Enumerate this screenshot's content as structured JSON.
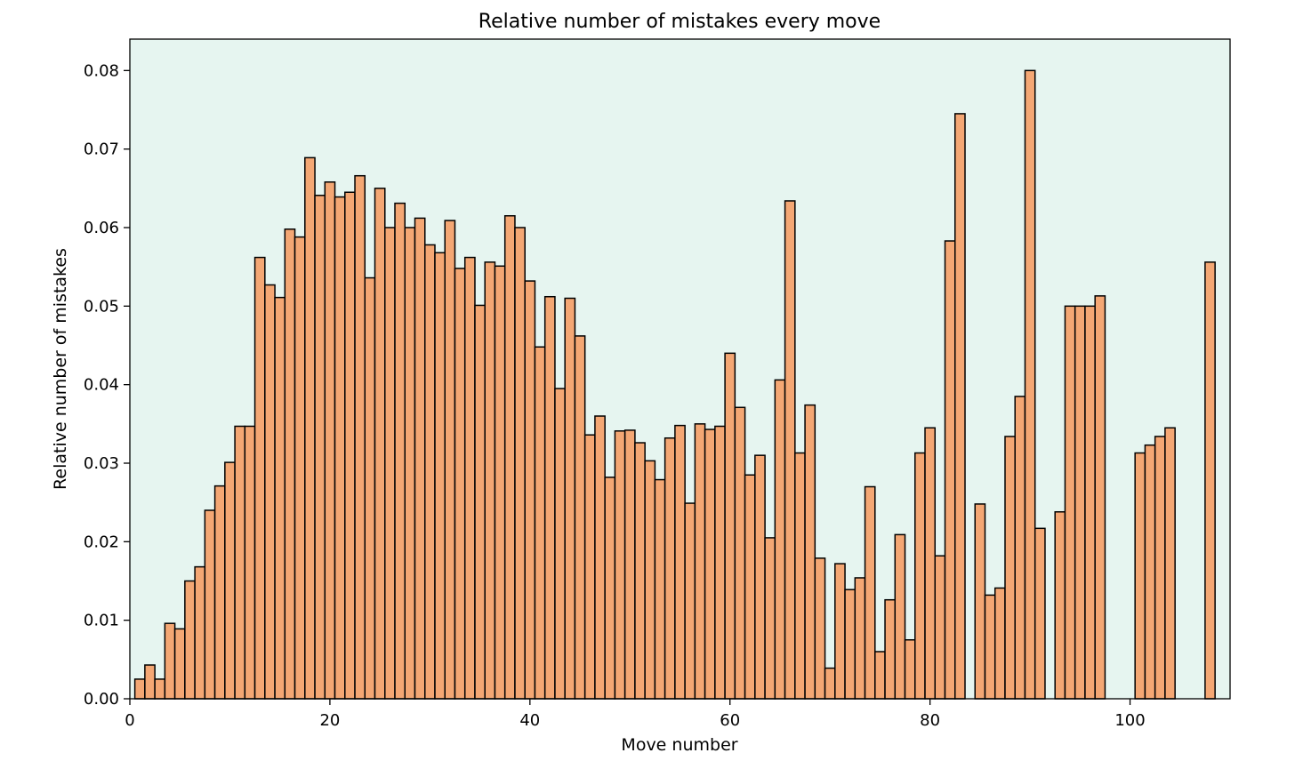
{
  "chart_data": {
    "type": "bar",
    "title": "Relative number of mistakes every move",
    "xlabel": "Move number",
    "ylabel": "Relative number of mistakes",
    "xlim": [
      0,
      110
    ],
    "ylim": [
      0,
      0.084
    ],
    "xticks": [
      0,
      20,
      40,
      60,
      80,
      100
    ],
    "xtick_labels": [
      "0",
      "20",
      "40",
      "60",
      "80",
      "100"
    ],
    "yticks": [
      0,
      0.01,
      0.02,
      0.03,
      0.04,
      0.05,
      0.06,
      0.07,
      0.08
    ],
    "ytick_labels": [
      "0.00",
      "0.01",
      "0.02",
      "0.03",
      "0.04",
      "0.05",
      "0.06",
      "0.07",
      "0.08"
    ],
    "grid": false,
    "legend": "none",
    "colors": {
      "bar_fill": "#f4a774",
      "bar_edge": "#000000",
      "plot_background": "#e6f5f0"
    },
    "bin_width": 1,
    "x": [
      1,
      2,
      3,
      4,
      5,
      6,
      7,
      8,
      9,
      10,
      11,
      12,
      13,
      14,
      15,
      16,
      17,
      18,
      19,
      20,
      21,
      22,
      23,
      24,
      25,
      26,
      27,
      28,
      29,
      30,
      31,
      32,
      33,
      34,
      35,
      36,
      37,
      38,
      39,
      40,
      41,
      42,
      43,
      44,
      45,
      46,
      47,
      48,
      49,
      50,
      51,
      52,
      53,
      54,
      55,
      56,
      57,
      58,
      59,
      60,
      61,
      62,
      63,
      64,
      65,
      66,
      67,
      68,
      69,
      70,
      71,
      72,
      73,
      74,
      75,
      76,
      77,
      78,
      79,
      80,
      81,
      82,
      83,
      84,
      85,
      86,
      87,
      88,
      89,
      90,
      91,
      92,
      93,
      94,
      95,
      96,
      97,
      98,
      99,
      100,
      101,
      102,
      103,
      104,
      105,
      106,
      107,
      108
    ],
    "values": [
      0.0025,
      0.0043,
      0.0025,
      0.0096,
      0.0089,
      0.015,
      0.0168,
      0.024,
      0.0271,
      0.0301,
      0.0347,
      0.0347,
      0.0562,
      0.0527,
      0.0511,
      0.0598,
      0.0588,
      0.0689,
      0.0641,
      0.0658,
      0.0639,
      0.0645,
      0.0666,
      0.0536,
      0.065,
      0.06,
      0.0631,
      0.06,
      0.0612,
      0.0578,
      0.0568,
      0.0609,
      0.0548,
      0.0562,
      0.0501,
      0.0556,
      0.0551,
      0.0615,
      0.06,
      0.0532,
      0.0448,
      0.0512,
      0.0395,
      0.051,
      0.0462,
      0.0336,
      0.036,
      0.0282,
      0.0341,
      0.0342,
      0.0326,
      0.0303,
      0.0279,
      0.0332,
      0.0348,
      0.0249,
      0.035,
      0.0343,
      0.0347,
      0.044,
      0.0371,
      0.0285,
      0.031,
      0.0205,
      0.0406,
      0.0634,
      0.0313,
      0.0374,
      0.0179,
      0.0039,
      0.0172,
      0.0139,
      0.0154,
      0.027,
      0.006,
      0.0126,
      0.0209,
      0.0075,
      0.0313,
      0.0345,
      0.0182,
      0.0583,
      0.0745,
      0,
      0.0248,
      0.0132,
      0.0141,
      0.0334,
      0.0385,
      0.08,
      0.0217,
      0,
      0.0238,
      0.05,
      0.05,
      0.05,
      0.0513,
      0,
      0,
      0,
      0.0313,
      0.0323,
      0.0334,
      0.0345,
      0,
      0,
      0,
      0.0556
    ]
  }
}
